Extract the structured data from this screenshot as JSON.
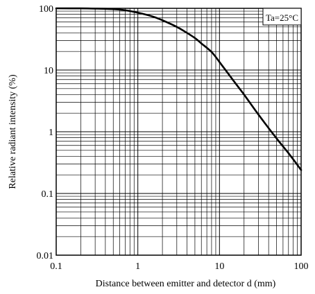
{
  "chart_data": {
    "type": "line",
    "title": "",
    "xlabel": "Distance between emitter and detector d (mm)",
    "ylabel": "Relative radiant intensity (%)",
    "x_scale": "log",
    "y_scale": "log",
    "xlim": [
      0.1,
      100
    ],
    "ylim": [
      0.01,
      100
    ],
    "x_ticks": [
      0.1,
      1,
      10,
      100
    ],
    "x_tick_labels": [
      "0.1",
      "1",
      "10",
      "100"
    ],
    "y_ticks": [
      0.01,
      0.1,
      1,
      10,
      100
    ],
    "y_tick_labels": [
      "0.01",
      "0.1",
      "1",
      "10",
      "100"
    ],
    "grid": true,
    "annotation": "Ta=25°C",
    "series": [
      {
        "x": [
          0.1,
          0.2,
          0.3,
          0.5,
          0.7,
          1,
          1.5,
          2,
          3,
          4,
          5,
          6,
          8,
          10,
          15,
          20,
          30,
          50,
          70,
          100
        ],
        "y": [
          100,
          99.8,
          99,
          97,
          93,
          85,
          74,
          64,
          50,
          40,
          33,
          27,
          19.6,
          13.5,
          6.6,
          4.0,
          1.9,
          0.78,
          0.45,
          0.24
        ]
      }
    ]
  }
}
